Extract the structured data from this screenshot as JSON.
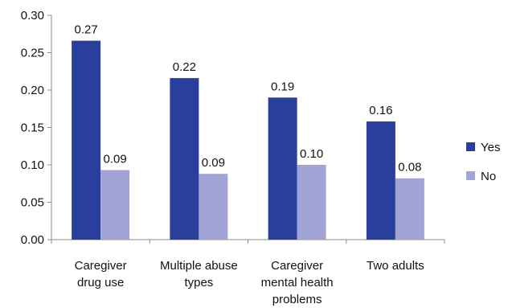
{
  "chart_data": {
    "type": "bar",
    "categories": [
      [
        "Caregiver",
        "drug use"
      ],
      [
        "Multiple abuse",
        "types"
      ],
      [
        "Caregiver",
        "mental health",
        "problems"
      ],
      [
        "Two adults"
      ]
    ],
    "series": [
      {
        "name": "Yes",
        "color": "#2a3f9b",
        "values": [
          0.266,
          0.216,
          0.19,
          0.158
        ],
        "labels": [
          "0.27",
          "0.22",
          "0.19",
          "0.16"
        ]
      },
      {
        "name": "No",
        "color": "#a2a4d6",
        "values": [
          0.093,
          0.088,
          0.1,
          0.082
        ],
        "labels": [
          "0.09",
          "0.09",
          "0.10",
          "0.08"
        ]
      }
    ],
    "ylim": [
      0,
      0.3
    ],
    "yticks": [
      "0.00",
      "0.05",
      "0.10",
      "0.15",
      "0.20",
      "0.25",
      "0.30"
    ],
    "grid": false,
    "legend": "right",
    "title": "",
    "xlabel": "",
    "ylabel": ""
  }
}
